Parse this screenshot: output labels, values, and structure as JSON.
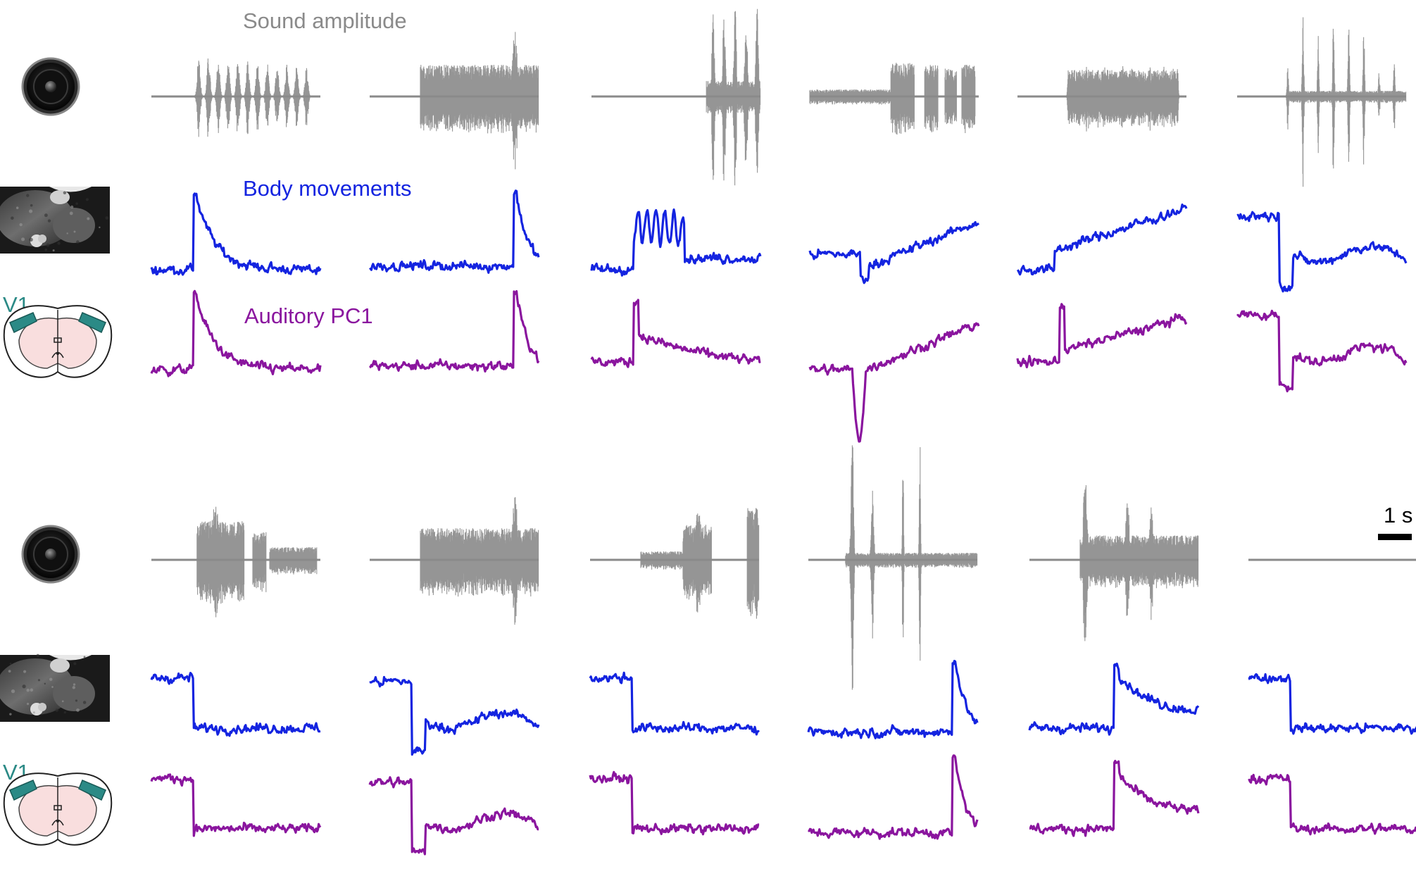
{
  "labels": {
    "sound": "Sound amplitude",
    "body": "Body movements",
    "auditory": "Auditory PC1",
    "region": "V1",
    "scalebar": "1 s"
  },
  "colors": {
    "sound": "#8a8a8a",
    "body": "#1424e0",
    "auditory": "#8a159e",
    "region": "#2b8a86",
    "scalebar": "#000000"
  },
  "icons": {
    "speaker": "speaker-icon",
    "mouse_video": "mouse-video-frame",
    "brain": "brain-section-icon"
  },
  "rows": [
    {
      "panels": [
        {
          "sound": "bursts",
          "body": "peak-decay",
          "auditory": "peak-decay"
        },
        {
          "sound": "dense",
          "body": "late-peak",
          "auditory": "late-peak"
        },
        {
          "sound": "late-bursts",
          "body": "oscillating",
          "auditory": "early-peak"
        },
        {
          "sound": "mixed",
          "body": "rising",
          "auditory": "dip-rise"
        },
        {
          "sound": "dense-regular",
          "body": "step-rise",
          "auditory": "spike-rise"
        },
        {
          "sound": "sparse-spikes",
          "body": "dip-recover",
          "auditory": "dip-recover"
        }
      ]
    },
    {
      "panels": [
        {
          "sound": "decaying",
          "body": "drop",
          "auditory": "drop"
        },
        {
          "sound": "dense",
          "body": "dip-recover",
          "auditory": "dip-recover"
        },
        {
          "sound": "two-bursts",
          "body": "drop",
          "auditory": "drop"
        },
        {
          "sound": "tall-spikes",
          "body": "late-peak",
          "auditory": "late-peak"
        },
        {
          "sound": "dense-peaks",
          "body": "mid-peak",
          "auditory": "mid-peak"
        },
        {
          "sound": "silent",
          "body": "drop",
          "auditory": "drop"
        }
      ]
    }
  ]
}
